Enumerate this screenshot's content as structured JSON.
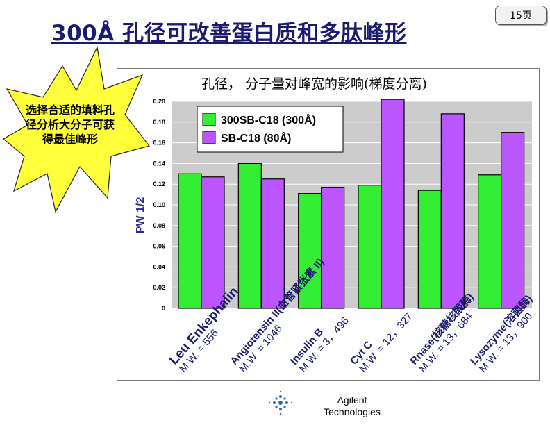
{
  "header": {
    "title": "300Å 孔径可改善蛋白质和多肽峰形",
    "page_badge": "15页"
  },
  "callout": {
    "text": "选择合适的填料孔径分析大分子可获得最佳峰形",
    "fill_color": "#ffff3c"
  },
  "footer": {
    "company_line1": "Agilent",
    "company_line2": "Technologies"
  },
  "colors": {
    "series1": "#33ee33",
    "series2": "#bb55ff",
    "plot_bg": "#cccccc",
    "title_dark_blue": "#1a1a6e"
  },
  "chart_data": {
    "type": "bar",
    "title": "孔径， 分子量对峰宽的影响(梯度分离)",
    "ylabel": "PW 1/2",
    "xlabel": "",
    "ylim": [
      0,
      0.2
    ],
    "yticks": [
      "0",
      "0.02",
      "0.04",
      "0.06",
      "0.08",
      "0.10",
      "0.12",
      "0.14",
      "0.16",
      "0.18",
      "0.20"
    ],
    "legend_position": "top-left",
    "categories": [
      {
        "line1": "Leu Enkephalin",
        "line2": "M.W. = 556"
      },
      {
        "line1": "Angiotensin II(血管紧张素 II)",
        "line2": "M.W. = 1046"
      },
      {
        "line1": "Insulin B",
        "line2": "M.W. = 3，496"
      },
      {
        "line1": "Cyt C",
        "line2": "M.W. = 12，327"
      },
      {
        "line1": "Rnase(核糖核酸酶)",
        "line2": "M.W. = 13，684"
      },
      {
        "line1": "Lysozyme(溶菌酶)",
        "line2": "M.W. = 13，900"
      }
    ],
    "series": [
      {
        "name": "300SB-C18 (300Å)",
        "values": [
          0.13,
          0.14,
          0.111,
          0.119,
          0.114,
          0.129
        ]
      },
      {
        "name": "SB-C18 (80Å)",
        "values": [
          0.127,
          0.125,
          0.117,
          0.202,
          0.188,
          0.17
        ]
      }
    ]
  }
}
